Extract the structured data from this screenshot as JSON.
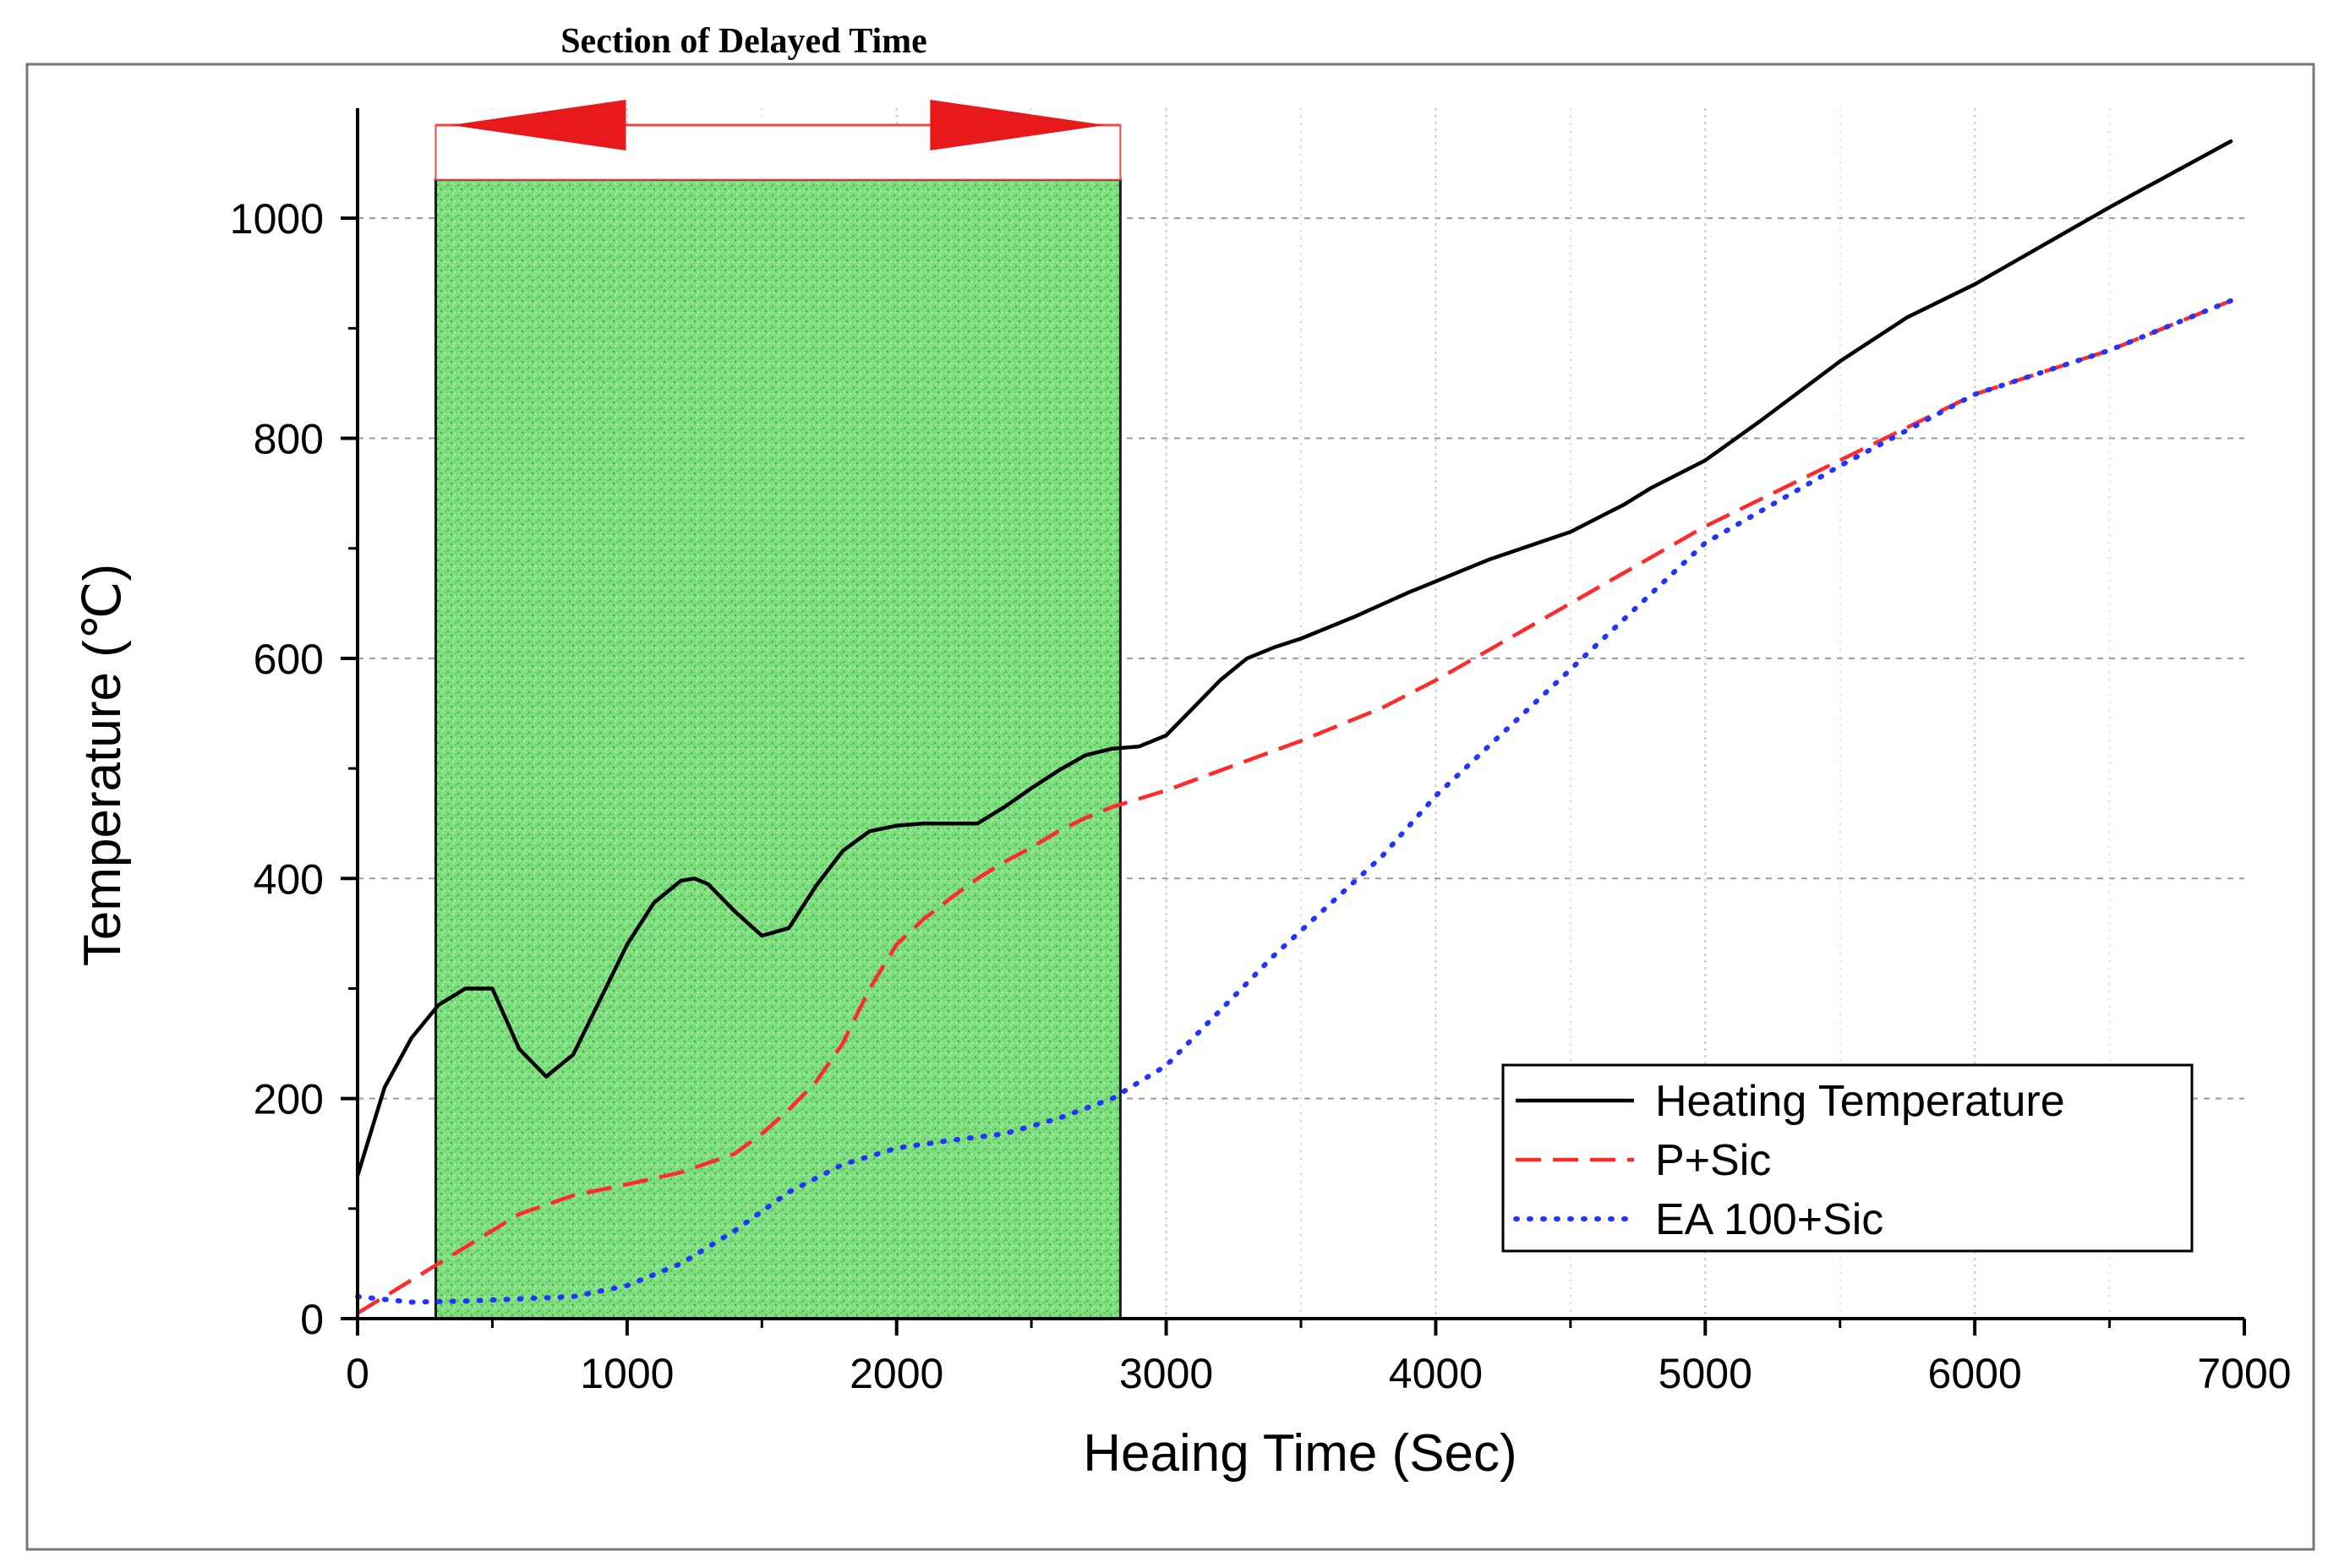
{
  "chart_data": {
    "type": "line",
    "title": "Section of Delayed Time",
    "xlabel": "Heaing Time (Sec)",
    "ylabel": "Temperature (℃)",
    "xlim": [
      0,
      7000
    ],
    "ylim": [
      0,
      1100
    ],
    "xticks": [
      0,
      1000,
      2000,
      3000,
      4000,
      5000,
      6000,
      7000
    ],
    "yticks": [
      0,
      200,
      400,
      600,
      800,
      1000
    ],
    "grid": true,
    "legend_position": "bottom-right",
    "shaded_region": {
      "x_start": 290,
      "x_end": 2830,
      "y_top": 1035,
      "label": "Section of Delayed Time",
      "color": "#5fd35f"
    },
    "series": [
      {
        "name": "Heating Temperature",
        "color": "#000000",
        "style": "solid",
        "x": [
          0,
          100,
          200,
          300,
          400,
          500,
          600,
          700,
          800,
          900,
          1000,
          1100,
          1200,
          1250,
          1300,
          1400,
          1500,
          1600,
          1700,
          1800,
          1900,
          2000,
          2100,
          2200,
          2300,
          2400,
          2500,
          2600,
          2700,
          2800,
          2900,
          3000,
          3100,
          3200,
          3300,
          3400,
          3500,
          3700,
          3900,
          4000,
          4200,
          4500,
          4700,
          4800,
          5000,
          5200,
          5500,
          5750,
          6000,
          6500,
          6950
        ],
        "values": [
          130,
          210,
          255,
          285,
          300,
          300,
          245,
          220,
          240,
          290,
          340,
          378,
          398,
          400,
          395,
          370,
          348,
          355,
          393,
          425,
          443,
          448,
          450,
          450,
          450,
          465,
          482,
          498,
          512,
          518,
          520,
          530,
          555,
          580,
          600,
          610,
          618,
          638,
          660,
          670,
          690,
          715,
          740,
          755,
          780,
          815,
          870,
          910,
          940,
          1010,
          1070
        ]
      },
      {
        "name": "P+Sic",
        "color": "#ff2a2a",
        "style": "dashed",
        "x": [
          0,
          200,
          400,
          600,
          800,
          1000,
          1200,
          1400,
          1500,
          1600,
          1700,
          1800,
          1900,
          2000,
          2100,
          2200,
          2300,
          2400,
          2500,
          2600,
          2700,
          2800,
          3000,
          3500,
          3800,
          4000,
          4500,
          5000,
          5500,
          6000,
          6500,
          6950
        ],
        "values": [
          5,
          35,
          65,
          95,
          112,
          122,
          133,
          150,
          168,
          190,
          215,
          250,
          300,
          340,
          363,
          382,
          400,
          415,
          428,
          443,
          455,
          465,
          480,
          525,
          555,
          580,
          650,
          720,
          780,
          840,
          880,
          925
        ]
      },
      {
        "name": "EA 100+Sic",
        "color": "#2233ff",
        "style": "dotted",
        "x": [
          0,
          200,
          400,
          600,
          800,
          1000,
          1200,
          1400,
          1600,
          1800,
          2000,
          2200,
          2400,
          2600,
          2800,
          3000,
          3400,
          3800,
          4000,
          4500,
          5000,
          5500,
          6000,
          6500,
          6950
        ],
        "values": [
          20,
          15,
          16,
          18,
          20,
          30,
          50,
          80,
          115,
          140,
          155,
          162,
          168,
          182,
          200,
          230,
          330,
          420,
          475,
          590,
          705,
          775,
          840,
          880,
          925
        ]
      }
    ]
  }
}
